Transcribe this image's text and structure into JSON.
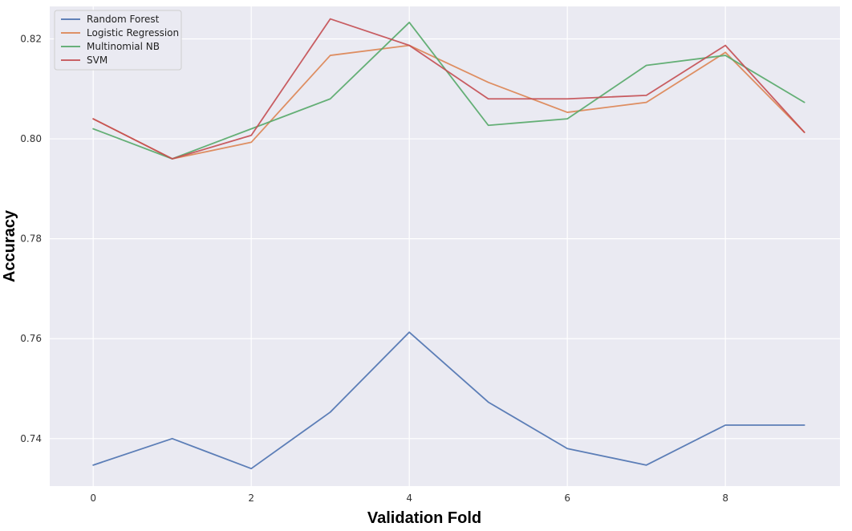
{
  "chart_data": {
    "type": "line",
    "title": "",
    "xlabel": "Validation Fold",
    "ylabel": "Accuracy",
    "x": [
      0,
      1,
      2,
      3,
      4,
      5,
      6,
      7,
      8,
      9
    ],
    "xlim": [
      -0.55,
      9.45
    ],
    "ylim": [
      0.7305,
      0.8265
    ],
    "x_ticks": [
      0,
      2,
      4,
      6,
      8
    ],
    "y_ticks": [
      0.74,
      0.76,
      0.78,
      0.8,
      0.82
    ],
    "x_tick_labels": [
      "0",
      "2",
      "4",
      "6",
      "8"
    ],
    "y_tick_labels": [
      "0.74",
      "0.76",
      "0.78",
      "0.80",
      "0.82"
    ],
    "grid": true,
    "legend_position": "top-left",
    "series": [
      {
        "name": "Random Forest",
        "color": "#4c72b0",
        "values": [
          0.7347,
          0.74,
          0.734,
          0.7453,
          0.7613,
          0.7473,
          0.738,
          0.7347,
          0.7427,
          0.7427
        ]
      },
      {
        "name": "Logistic Regression",
        "color": "#dd8452",
        "values": [
          0.804,
          0.796,
          0.7993,
          0.8167,
          0.8187,
          0.8113,
          0.8053,
          0.8073,
          0.8173,
          0.8013
        ]
      },
      {
        "name": "Multinomial NB",
        "color": "#55a868",
        "values": [
          0.802,
          0.796,
          0.802,
          0.808,
          0.8233,
          0.8027,
          0.804,
          0.8147,
          0.8167,
          0.8073
        ]
      },
      {
        "name": "SVM",
        "color": "#c44e52",
        "values": [
          0.804,
          0.796,
          0.8007,
          0.824,
          0.8187,
          0.808,
          0.808,
          0.8087,
          0.8187,
          0.8013
        ]
      }
    ]
  }
}
